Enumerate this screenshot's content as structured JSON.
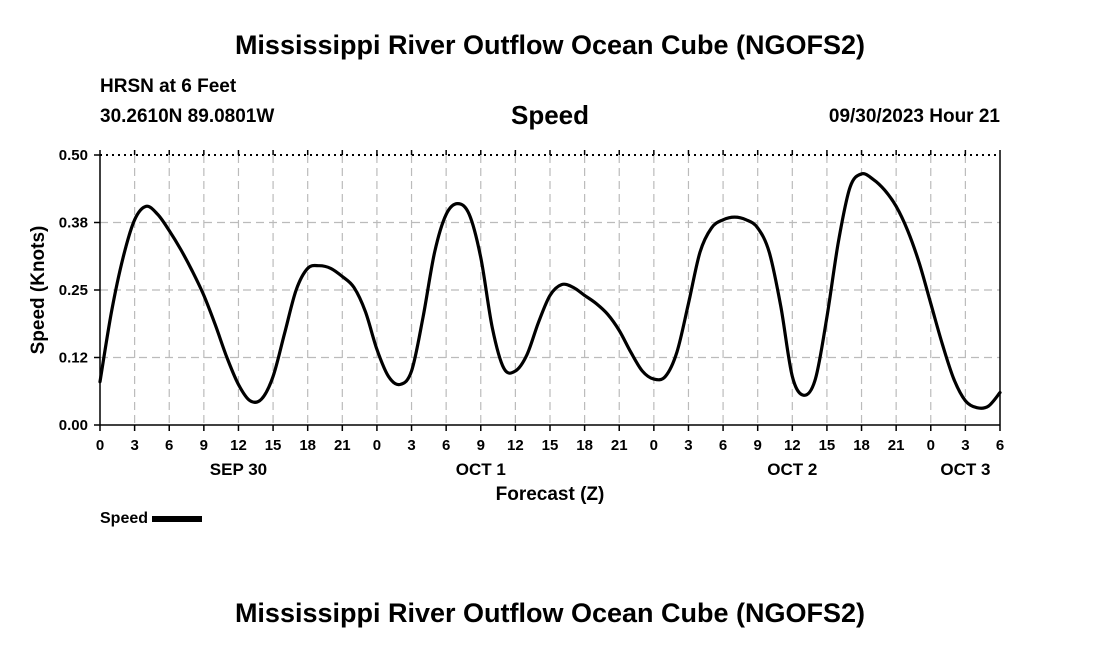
{
  "chart_data": {
    "type": "line",
    "title": "Mississippi River Outflow Ocean Cube (NGOFS2)",
    "station": "HRSN at 6 Feet",
    "location": "30.2610N  89.0801W",
    "subtitle": "Speed",
    "timestamp": "09/30/2023 Hour 21",
    "xlabel": "Forecast (Z)",
    "ylabel": "Speed (Knots)",
    "xlim": [
      0,
      78
    ],
    "ylim": [
      0,
      0.5
    ],
    "yticks": [
      0.0,
      0.125,
      0.25,
      0.375,
      0.5
    ],
    "ytick_labels": [
      "0.00",
      "0.12",
      "0.25",
      "0.38",
      "0.50"
    ],
    "xticks": [
      0,
      3,
      6,
      9,
      12,
      15,
      18,
      21,
      24,
      27,
      30,
      33,
      36,
      39,
      42,
      45,
      48,
      51,
      54,
      57,
      60,
      63,
      66,
      69,
      72,
      75,
      78
    ],
    "xtick_labels": [
      "0",
      "3",
      "6",
      "9",
      "12",
      "15",
      "18",
      "21",
      "0",
      "3",
      "6",
      "9",
      "12",
      "15",
      "18",
      "21",
      "0",
      "3",
      "6",
      "9",
      "12",
      "15",
      "18",
      "21",
      "0",
      "3",
      "6"
    ],
    "date_labels": [
      {
        "x": 12,
        "label": "SEP 30"
      },
      {
        "x": 33,
        "label": "OCT 1"
      },
      {
        "x": 60,
        "label": "OCT 2"
      },
      {
        "x": 75,
        "label": "OCT 3"
      }
    ],
    "grid": true,
    "legend": "bottom-left",
    "series": [
      {
        "name": "Speed",
        "color": "#000000",
        "x": [
          0,
          1,
          2,
          3,
          4,
          5,
          6,
          7,
          8,
          9,
          10,
          11,
          12,
          13,
          14,
          15,
          16,
          17,
          18,
          19,
          20,
          21,
          22,
          23,
          24,
          25,
          26,
          27,
          28,
          29,
          30,
          31,
          32,
          33,
          34,
          35,
          36,
          37,
          38,
          39,
          40,
          41,
          42,
          43,
          44,
          45,
          46,
          47,
          48,
          49,
          50,
          51,
          52,
          53,
          54,
          55,
          56,
          57,
          58,
          59,
          60,
          61,
          62,
          63,
          64,
          65,
          66,
          67,
          68,
          69,
          70,
          71,
          72,
          73,
          74,
          75,
          76,
          77,
          78
        ],
        "values": [
          0.08,
          0.21,
          0.31,
          0.38,
          0.405,
          0.39,
          0.36,
          0.325,
          0.285,
          0.24,
          0.185,
          0.125,
          0.075,
          0.045,
          0.048,
          0.09,
          0.17,
          0.25,
          0.29,
          0.295,
          0.29,
          0.275,
          0.255,
          0.21,
          0.14,
          0.09,
          0.075,
          0.1,
          0.2,
          0.32,
          0.39,
          0.41,
          0.39,
          0.31,
          0.18,
          0.105,
          0.1,
          0.13,
          0.19,
          0.24,
          0.26,
          0.255,
          0.24,
          0.225,
          0.205,
          0.175,
          0.135,
          0.1,
          0.085,
          0.09,
          0.135,
          0.225,
          0.32,
          0.365,
          0.38,
          0.385,
          0.38,
          0.365,
          0.32,
          0.22,
          0.09,
          0.055,
          0.085,
          0.2,
          0.34,
          0.44,
          0.465,
          0.455,
          0.435,
          0.405,
          0.36,
          0.3,
          0.225,
          0.15,
          0.085,
          0.045,
          0.032,
          0.035,
          0.06
        ]
      }
    ]
  }
}
